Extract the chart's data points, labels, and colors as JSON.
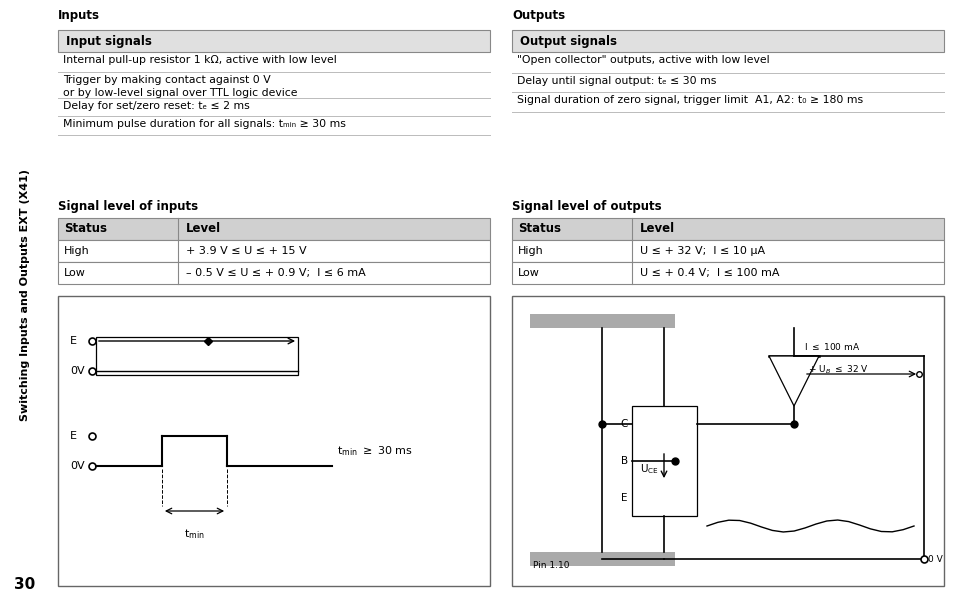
{
  "sidebar_color": "#c8c8c8",
  "sidebar_text": "Switching Inputs and Outputs EXT (X41)",
  "page_number": "30",
  "background": "#ffffff",
  "inputs_title": "Inputs",
  "outputs_title": "Outputs",
  "input_signals_header": "Input signals",
  "output_signals_header": "Output signals",
  "input_rows": [
    "Internal pull-up resistor 1 kΩ, active with low level",
    "Trigger by making contact against 0 V  \nor by low-level signal over TTL logic device",
    "Delay for set/zero reset: tₑ ≤ 2 ms",
    "Minimum pulse duration for all signals: tₘᵢₙ ≥ 30 ms"
  ],
  "output_rows": [
    "\"Open collector\" outputs, active with low level",
    "Delay until signal output: tₑ ≤ 30 ms",
    "Signal duration of zero signal, trigger limit  A1, A2: t₀ ≥ 180 ms"
  ],
  "signal_level_inputs_title": "Signal level of inputs",
  "signal_level_outputs_title": "Signal level of outputs",
  "input_table_headers": [
    "Status",
    "Level"
  ],
  "input_table_rows": [
    [
      "High",
      "+ 3.9 V ≤ U ≤ + 15 V"
    ],
    [
      "Low",
      "– 0.5 V ≤ U ≤ + 0.9 V;  I ≤ 6 mA"
    ]
  ],
  "output_table_headers": [
    "Status",
    "Level"
  ],
  "output_table_rows": [
    [
      "High",
      "U ≤ + 32 V;  I ≤ 10 μA"
    ],
    [
      "Low",
      "U ≤ + 0.4 V;  I ≤ 100 mA"
    ]
  ],
  "table_header_bg": "#d0d0d0",
  "table_border_color": "#888888",
  "header_bg_color": "#e0e0e0"
}
